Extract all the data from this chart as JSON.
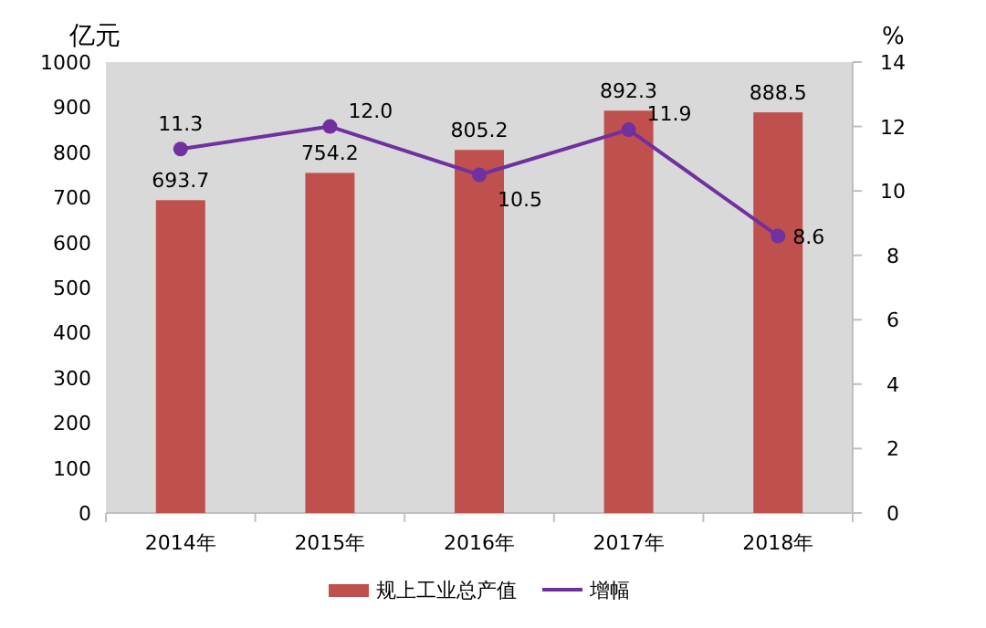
{
  "chart_data": {
    "type": "bar",
    "categories": [
      "2014年",
      "2015年",
      "2016年",
      "2017年",
      "2018年"
    ],
    "ylabel": "亿元",
    "y2label": "%",
    "ylim": [
      0,
      1000
    ],
    "yticks": [
      0,
      100,
      200,
      300,
      400,
      500,
      600,
      700,
      800,
      900,
      1000
    ],
    "y2lim": [
      0,
      14
    ],
    "y2ticks": [
      0,
      2,
      4,
      6,
      8,
      10,
      12,
      14
    ],
    "series": [
      {
        "name": "规上工业总产值",
        "color": "#c0504d",
        "values": [
          693.7,
          754.2,
          805.2,
          892.3,
          888.5
        ]
      },
      {
        "name": "增幅",
        "type": "line",
        "axis": "y2",
        "color": "#7030a0",
        "values": [
          11.3,
          12.0,
          10.5,
          11.9,
          8.6
        ],
        "value_labels": [
          "11.3",
          "12.0",
          "10.5",
          "11.9",
          "8.6"
        ]
      }
    ],
    "data_labels": true,
    "marker": "circle",
    "legend": "bottom",
    "grid": false
  }
}
